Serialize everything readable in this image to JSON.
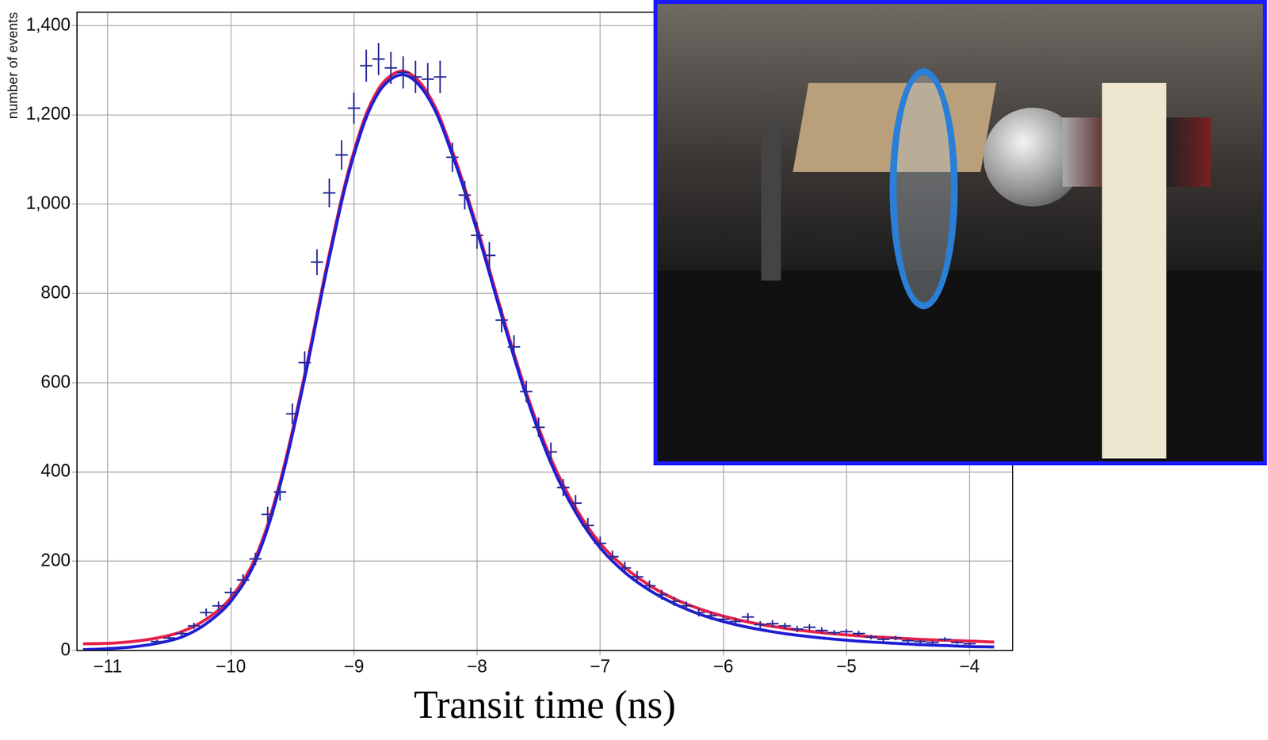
{
  "chart_data": {
    "type": "scatter",
    "x_label": "Transit time (ns)",
    "y_label": "number of events",
    "xlim": [
      -11.25,
      -3.65
    ],
    "xticks": [
      -11,
      -10,
      -9,
      -8,
      -7,
      -6,
      -5,
      -4
    ],
    "ylim": [
      0,
      1430
    ],
    "yticks": [
      0,
      200,
      400,
      600,
      800,
      1000,
      1200,
      1400
    ],
    "grid": true,
    "series": [
      {
        "type": "line",
        "color": "#e8204a",
        "line_style": "solid",
        "x": [
          -11.2,
          -11.0,
          -10.8,
          -10.6,
          -10.4,
          -10.2,
          -10.0,
          -9.8,
          -9.6,
          -9.4,
          -9.2,
          -9.0,
          -8.8,
          -8.6,
          -8.4,
          -8.2,
          -8.0,
          -7.8,
          -7.6,
          -7.4,
          -7.2,
          -7.0,
          -6.8,
          -6.6,
          -6.4,
          -6.2,
          -6.0,
          -5.8,
          -5.6,
          -5.4,
          -5.2,
          -5.0,
          -4.8,
          -4.6,
          -4.4,
          -4.2,
          -4.0,
          -3.8
        ],
        "values": [
          15,
          16,
          20,
          28,
          42,
          70,
          118,
          208,
          378,
          618,
          888,
          1118,
          1258,
          1298,
          1248,
          1118,
          948,
          758,
          578,
          430,
          320,
          240,
          186,
          146,
          116,
          94,
          77,
          64,
          54,
          46,
          40,
          35,
          31,
          28,
          25,
          23,
          21,
          19
        ]
      },
      {
        "type": "line",
        "color": "#1f1fd6",
        "line_style": "solid",
        "x": [
          -11.2,
          -11.0,
          -10.8,
          -10.6,
          -10.4,
          -10.2,
          -10.0,
          -9.8,
          -9.6,
          -9.4,
          -9.2,
          -9.0,
          -8.8,
          -8.6,
          -8.4,
          -8.2,
          -8.0,
          -7.8,
          -7.6,
          -7.4,
          -7.2,
          -7.0,
          -6.8,
          -6.6,
          -6.4,
          -6.2,
          -6.0,
          -5.8,
          -5.6,
          -5.4,
          -5.2,
          -5.0,
          -4.8,
          -4.6,
          -4.4,
          -4.2,
          -4.0,
          -3.8
        ],
        "values": [
          2,
          4,
          8,
          16,
          30,
          60,
          110,
          200,
          370,
          610,
          880,
          1110,
          1250,
          1290,
          1240,
          1110,
          940,
          750,
          570,
          420,
          310,
          230,
          175,
          135,
          105,
          82,
          65,
          52,
          42,
          34,
          28,
          23,
          19,
          16,
          13,
          11,
          9,
          8
        ]
      },
      {
        "type": "scatter",
        "color": "#2a2a9a",
        "marker": "cross",
        "x_error": 0.05,
        "x": [
          -10.6,
          -10.5,
          -10.4,
          -10.3,
          -10.2,
          -10.1,
          -10.0,
          -9.9,
          -9.8,
          -9.7,
          -9.6,
          -9.5,
          -9.4,
          -9.3,
          -9.2,
          -9.1,
          -9.0,
          -8.9,
          -8.8,
          -8.7,
          -8.6,
          -8.5,
          -8.4,
          -8.3,
          -8.2,
          -8.1,
          -8.0,
          -7.9,
          -7.8,
          -7.7,
          -7.6,
          -7.5,
          -7.4,
          -7.3,
          -7.2,
          -7.1,
          -7.0,
          -6.9,
          -6.8,
          -6.7,
          -6.6,
          -6.5,
          -6.4,
          -6.3,
          -6.2,
          -6.1,
          -6.0,
          -5.9,
          -5.8,
          -5.7,
          -5.6,
          -5.5,
          -5.4,
          -5.3,
          -5.2,
          -5.1,
          -5.0,
          -4.9,
          -4.8,
          -4.7,
          -4.6,
          -4.5,
          -4.4,
          -4.3,
          -4.2,
          -4.1,
          -4.0
        ],
        "values": [
          20,
          28,
          38,
          55,
          85,
          100,
          130,
          158,
          205,
          305,
          355,
          530,
          645,
          870,
          1025,
          1110,
          1215,
          1310,
          1325,
          1305,
          1295,
          1285,
          1280,
          1285,
          1105,
          1020,
          930,
          885,
          740,
          680,
          580,
          500,
          445,
          365,
          330,
          280,
          240,
          210,
          185,
          165,
          145,
          125,
          110,
          100,
          85,
          78,
          70,
          65,
          75,
          58,
          60,
          55,
          48,
          52,
          45,
          40,
          42,
          38,
          30,
          25,
          28,
          22,
          20,
          18,
          25,
          18,
          15
        ],
        "y_errors": [
          4,
          5,
          6,
          7,
          9,
          10,
          11,
          13,
          14,
          17,
          19,
          23,
          25,
          29,
          32,
          33,
          35,
          36,
          36,
          36,
          36,
          36,
          36,
          36,
          33,
          32,
          30,
          30,
          27,
          26,
          24,
          22,
          21,
          19,
          18,
          17,
          15,
          14,
          14,
          13,
          12,
          11,
          10,
          10,
          9,
          9,
          8,
          8,
          9,
          8,
          8,
          7,
          7,
          7,
          7,
          6,
          6,
          6,
          5,
          5,
          5,
          5,
          4,
          4,
          5,
          4,
          4
        ]
      }
    ]
  }
}
